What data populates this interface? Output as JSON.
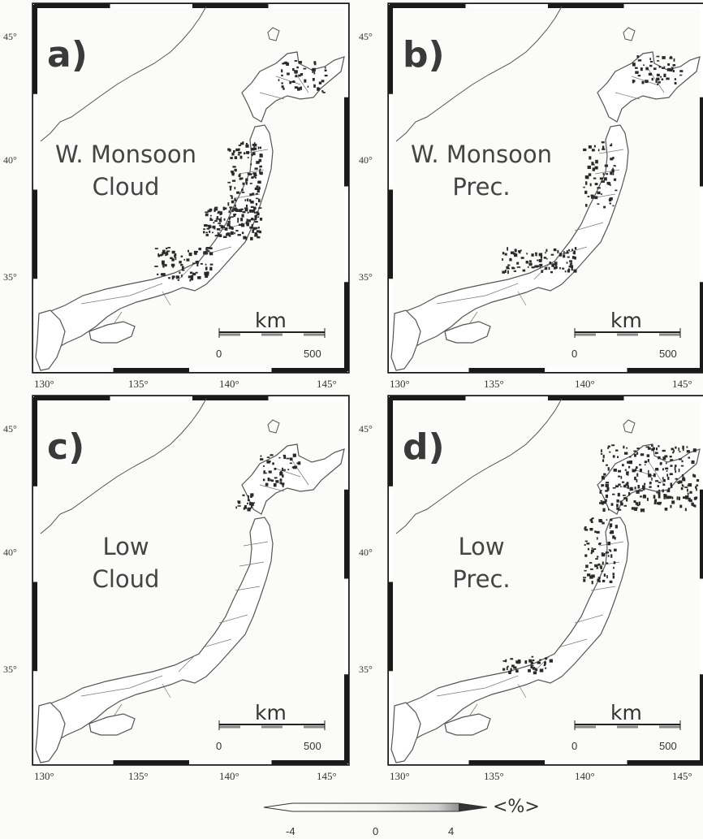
{
  "panels": [
    {
      "letter": "a)",
      "title1": "W. Monsoon",
      "title2": "Cloud",
      "variant": "a"
    },
    {
      "letter": "b)",
      "title1": "W. Monsoon",
      "title2": "Prec.",
      "variant": "b"
    },
    {
      "letter": "c)",
      "title1": "Low",
      "title2": "Cloud",
      "variant": "c"
    },
    {
      "letter": "d)",
      "title1": "Low",
      "title2": "Prec.",
      "variant": "d"
    }
  ],
  "lat_labels": [
    "45°",
    "40°",
    "35°"
  ],
  "lon_labels": [
    "130°",
    "135°",
    "140°",
    "145°"
  ],
  "scalebar": {
    "unit": "km",
    "left": "0",
    "right": "500"
  },
  "colorbar": {
    "ticks": [
      "-4",
      "0",
      "4"
    ],
    "unit": "<%>",
    "range": [
      -4,
      4
    ]
  },
  "colors": {
    "frame": "#1a1a1a",
    "land_outline": "#555555",
    "highlight": "#2a2a2a",
    "background": "#fbfbf9"
  }
}
